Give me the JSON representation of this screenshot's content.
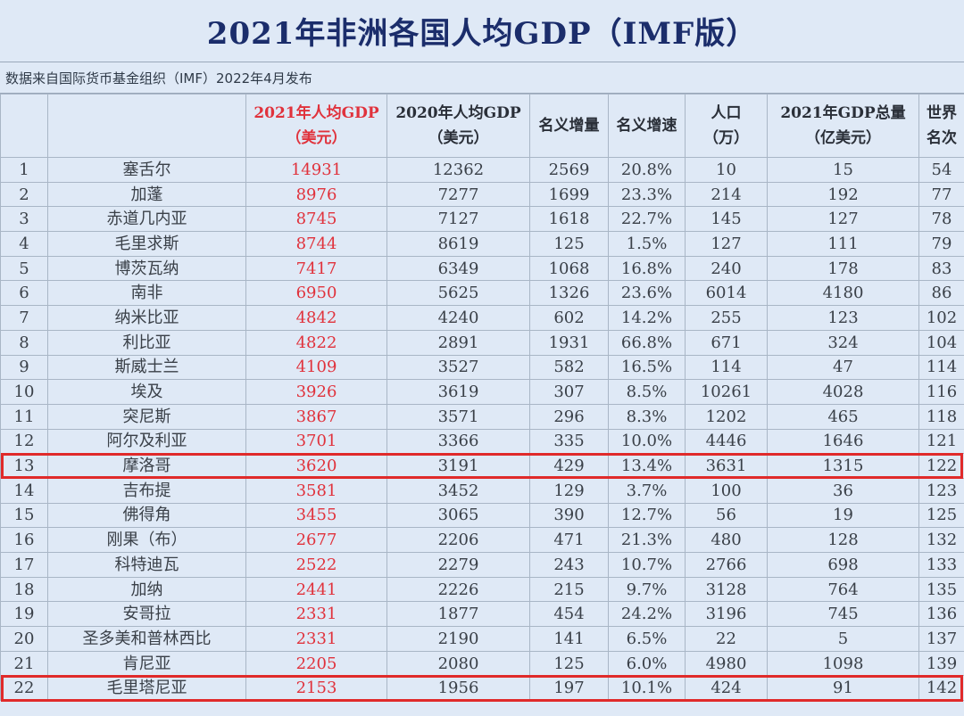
{
  "title": "2021年非洲各国人均GDP（IMF版）",
  "subtitle": "数据来自国际货币基金组织（IMF）2022年4月发布",
  "headers": {
    "gdp2021_l1": "2021年人均GDP",
    "gdp2021_l2": "（美元）",
    "gdp2020_l1": "2020年人均GDP",
    "gdp2020_l2": "（美元）",
    "nominal_growth": "名义增量",
    "nominal_rate": "名义增速",
    "pop_l1": "人口",
    "pop_l2": "（万）",
    "total_l1": "2021年GDP总量",
    "total_l2": "（亿美元）",
    "rank_l1": "世界",
    "rank_l2": "名次"
  },
  "rows": [
    {
      "no": "1",
      "country": "塞舌尔",
      "gdp2021": "14931",
      "gdp2020": "12362",
      "inc": "2569",
      "rate": "20.8%",
      "pop": "10",
      "total": "15",
      "rank": "54"
    },
    {
      "no": "2",
      "country": "加蓬",
      "gdp2021": "8976",
      "gdp2020": "7277",
      "inc": "1699",
      "rate": "23.3%",
      "pop": "214",
      "total": "192",
      "rank": "77"
    },
    {
      "no": "3",
      "country": "赤道几内亚",
      "gdp2021": "8745",
      "gdp2020": "7127",
      "inc": "1618",
      "rate": "22.7%",
      "pop": "145",
      "total": "127",
      "rank": "78"
    },
    {
      "no": "4",
      "country": "毛里求斯",
      "gdp2021": "8744",
      "gdp2020": "8619",
      "inc": "125",
      "rate": "1.5%",
      "pop": "127",
      "total": "111",
      "rank": "79"
    },
    {
      "no": "5",
      "country": "博茨瓦纳",
      "gdp2021": "7417",
      "gdp2020": "6349",
      "inc": "1068",
      "rate": "16.8%",
      "pop": "240",
      "total": "178",
      "rank": "83"
    },
    {
      "no": "6",
      "country": "南非",
      "gdp2021": "6950",
      "gdp2020": "5625",
      "inc": "1326",
      "rate": "23.6%",
      "pop": "6014",
      "total": "4180",
      "rank": "86"
    },
    {
      "no": "7",
      "country": "纳米比亚",
      "gdp2021": "4842",
      "gdp2020": "4240",
      "inc": "602",
      "rate": "14.2%",
      "pop": "255",
      "total": "123",
      "rank": "102"
    },
    {
      "no": "8",
      "country": "利比亚",
      "gdp2021": "4822",
      "gdp2020": "2891",
      "inc": "1931",
      "rate": "66.8%",
      "pop": "671",
      "total": "324",
      "rank": "104"
    },
    {
      "no": "9",
      "country": "斯威士兰",
      "gdp2021": "4109",
      "gdp2020": "3527",
      "inc": "582",
      "rate": "16.5%",
      "pop": "114",
      "total": "47",
      "rank": "114"
    },
    {
      "no": "10",
      "country": "埃及",
      "gdp2021": "3926",
      "gdp2020": "3619",
      "inc": "307",
      "rate": "8.5%",
      "pop": "10261",
      "total": "4028",
      "rank": "116"
    },
    {
      "no": "11",
      "country": "突尼斯",
      "gdp2021": "3867",
      "gdp2020": "3571",
      "inc": "296",
      "rate": "8.3%",
      "pop": "1202",
      "total": "465",
      "rank": "118"
    },
    {
      "no": "12",
      "country": "阿尔及利亚",
      "gdp2021": "3701",
      "gdp2020": "3366",
      "inc": "335",
      "rate": "10.0%",
      "pop": "4446",
      "total": "1646",
      "rank": "121"
    },
    {
      "no": "13",
      "country": "摩洛哥",
      "gdp2021": "3620",
      "gdp2020": "3191",
      "inc": "429",
      "rate": "13.4%",
      "pop": "3631",
      "total": "1315",
      "rank": "122"
    },
    {
      "no": "14",
      "country": "吉布提",
      "gdp2021": "3581",
      "gdp2020": "3452",
      "inc": "129",
      "rate": "3.7%",
      "pop": "100",
      "total": "36",
      "rank": "123"
    },
    {
      "no": "15",
      "country": "佛得角",
      "gdp2021": "3455",
      "gdp2020": "3065",
      "inc": "390",
      "rate": "12.7%",
      "pop": "56",
      "total": "19",
      "rank": "125"
    },
    {
      "no": "16",
      "country": "刚果（布）",
      "gdp2021": "2677",
      "gdp2020": "2206",
      "inc": "471",
      "rate": "21.3%",
      "pop": "480",
      "total": "128",
      "rank": "132"
    },
    {
      "no": "17",
      "country": "科特迪瓦",
      "gdp2021": "2522",
      "gdp2020": "2279",
      "inc": "243",
      "rate": "10.7%",
      "pop": "2766",
      "total": "698",
      "rank": "133"
    },
    {
      "no": "18",
      "country": "加纳",
      "gdp2021": "2441",
      "gdp2020": "2226",
      "inc": "215",
      "rate": "9.7%",
      "pop": "3128",
      "total": "764",
      "rank": "135"
    },
    {
      "no": "19",
      "country": "安哥拉",
      "gdp2021": "2331",
      "gdp2020": "1877",
      "inc": "454",
      "rate": "24.2%",
      "pop": "3196",
      "total": "745",
      "rank": "136"
    },
    {
      "no": "20",
      "country": "圣多美和普林西比",
      "gdp2021": "2331",
      "gdp2020": "2190",
      "inc": "141",
      "rate": "6.5%",
      "pop": "22",
      "total": "5",
      "rank": "137"
    },
    {
      "no": "21",
      "country": "肯尼亚",
      "gdp2021": "2205",
      "gdp2020": "2080",
      "inc": "125",
      "rate": "6.0%",
      "pop": "4980",
      "total": "1098",
      "rank": "139"
    },
    {
      "no": "22",
      "country": "毛里塔尼亚",
      "gdp2021": "2153",
      "gdp2020": "1956",
      "inc": "197",
      "rate": "10.1%",
      "pop": "424",
      "total": "91",
      "rank": "142"
    }
  ],
  "highlighted_rows": [
    "13",
    "22"
  ],
  "colors": {
    "title_text": "#1b2d6b",
    "gdp2021_text": "#e0323c",
    "highlight_border": "#e02a2a",
    "background": "#dfe9f6"
  }
}
